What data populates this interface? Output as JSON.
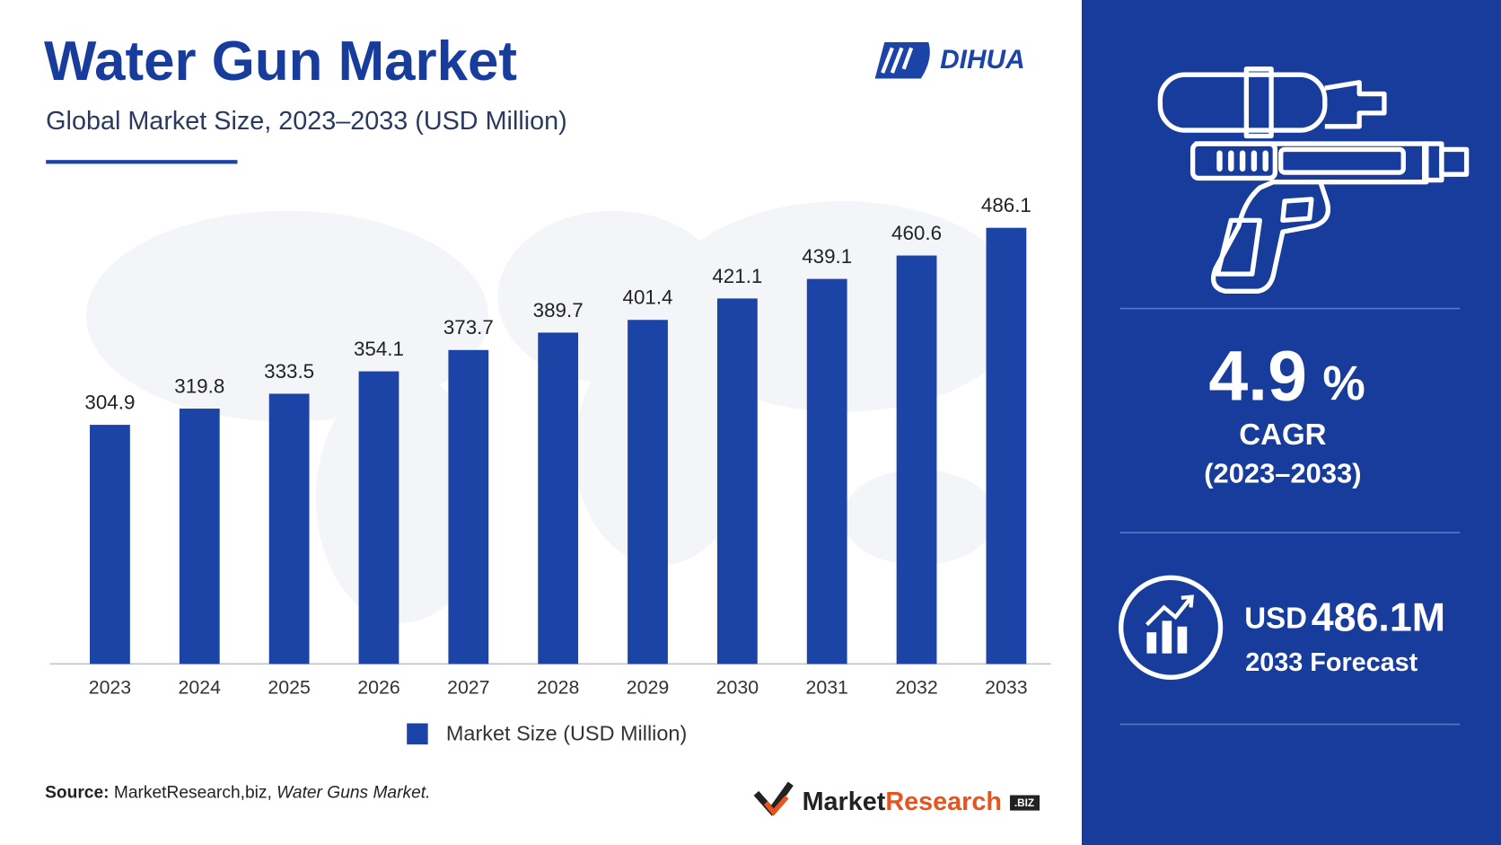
{
  "chart_data": {
    "type": "bar",
    "title": "Water Gun Market",
    "subtitle": "Global Market Size, 2023–2033 (USD Million)",
    "categories": [
      "2023",
      "2024",
      "2025",
      "2026",
      "2027",
      "2028",
      "2029",
      "2030",
      "2031",
      "2032",
      "2033"
    ],
    "series": [
      {
        "name": "Market Size (USD Million)",
        "color": "#1c44a6",
        "values": [
          304.9,
          319.8,
          333.5,
          354.1,
          373.7,
          389.7,
          401.4,
          421.1,
          439.1,
          460.6,
          486.1
        ]
      }
    ],
    "ylim": [
      85,
      500
    ],
    "grid": false,
    "legend": "bottom"
  },
  "brand": "DIHUA",
  "source": {
    "label": "Source:",
    "text": "MarketResearch,biz,",
    "title": "Water Guns Market."
  },
  "highlights": {
    "cagr": "4.9",
    "cagr_unit": "%",
    "cagr_label": "CAGR",
    "cagr_period": "(2023–2033)",
    "forecast_currency": "USD",
    "forecast_value": "486.1M",
    "forecast_label": "2033 Forecast"
  },
  "footer_logo": {
    "part1": "Market",
    "part2": "Research",
    "suffix": ".BIZ"
  }
}
